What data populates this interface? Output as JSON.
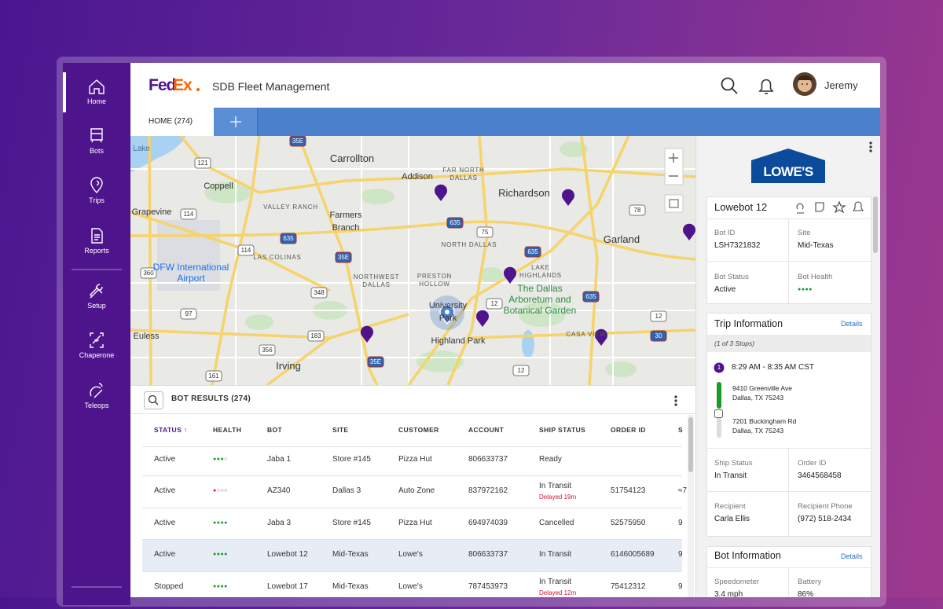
{
  "nav": [
    "Home",
    "Bots",
    "Trips",
    "Reports",
    "Setup",
    "Chaperone",
    "Teleops"
  ],
  "header": {
    "logo_fed": "Fed",
    "logo_ex": "Ex",
    "title": "SDB Fleet Management",
    "user": "Jeremy"
  },
  "tabs": [
    "HOME (274)"
  ],
  "map": {
    "labels": [
      "Lake",
      "Carrollton",
      "Addison",
      "FAR NORTH DALLAS",
      "Coppell",
      "Richardson",
      "Grapevine",
      "VALLEY RANCH",
      "Farmers Branch",
      "Garland",
      "NORTH DALLAS",
      "DFW International Airport",
      "LAS COLINAS",
      "NORTHWEST DALLAS",
      "PRESTON HOLLOW",
      "LAKE HIGHLANDS",
      "The Dallas Arboretum and Botanical Garden",
      "University Park",
      "Highland Park",
      "CASA VIEW",
      "Euless",
      "Irving"
    ],
    "shields": [
      "35E",
      "121",
      "635",
      "75",
      "114",
      "78",
      "635",
      "114",
      "35E",
      "635",
      "360",
      "348",
      "12",
      "635",
      "97",
      "183",
      "12",
      "356",
      "30",
      "35E",
      "12",
      "161"
    ]
  },
  "results": {
    "title": "BOT RESULTS (274)",
    "columns": [
      "STATUS ↑",
      "HEALTH",
      "BOT",
      "SITE",
      "CUSTOMER",
      "ACCOUNT",
      "SHIP STATUS",
      "ORDER ID",
      "S"
    ],
    "rows": [
      {
        "status": "Active",
        "health": "●●●○",
        "health_color": "#1a9a2a",
        "bot": "Jaba 1",
        "site": "Store #145",
        "customer": "Pizza Hut",
        "account": "806633737",
        "ship_status": "Ready"
      },
      {
        "status": "Active",
        "health": "●○○○",
        "health_color": "#d0173a",
        "bot": "AZ340",
        "site": "Dallas 3",
        "customer": "Auto Zone",
        "account": "837972162",
        "ship_status": "In Transit",
        "delay": "Delayed 19m",
        "order_id": "51754123",
        "s": "≈7"
      },
      {
        "status": "Active",
        "health": "●●●●",
        "health_color": "#1a9a2a",
        "bot": "Jaba 3",
        "site": "Store #145",
        "customer": "Pizza Hut",
        "account": "694974039",
        "ship_status": "Cancelled",
        "order_id": "52575950",
        "s": "9"
      },
      {
        "status": "Active",
        "health": "●●●●",
        "health_color": "#1a9a2a",
        "bot": "Lowebot 12",
        "site": "Mid-Texas",
        "customer": "Lowe's",
        "account": "806633737",
        "ship_status": "In Transit",
        "order_id": "6146005689",
        "s": "9"
      },
      {
        "status": "Stopped",
        "health": "●●●●",
        "health_color": "#1a9a2a",
        "bot": "Lowebot 17",
        "site": "Mid-Texas",
        "customer": "Lowe's",
        "account": "787453973",
        "ship_status": "In Transit",
        "delay": "Delayed 12m",
        "order_id": "75412312",
        "s": "9"
      }
    ]
  },
  "detail": {
    "brand": "LOWE'S",
    "bot_name": "Lowebot 12",
    "fields": [
      {
        "label": "Bot ID",
        "value": "LSH7321832"
      },
      {
        "label": "Site",
        "value": "Mid-Texas"
      },
      {
        "label": "Bot Status",
        "value": "Active"
      },
      {
        "label": "Bot Health",
        "value": "●●●●"
      }
    ],
    "trip": {
      "title": "Trip Information",
      "link": "Details",
      "stops": "(1 of 3 Stops)",
      "step": "1",
      "time": "8:29 AM - 8:35 AM CST",
      "from": [
        "9410 Greenville Ave",
        "Dallas, TX 75243"
      ],
      "to": [
        "7201 Buckingham Rd",
        "Dallas, TX 75243"
      ],
      "fields": [
        {
          "label": "Ship Status",
          "value": "In Transit"
        },
        {
          "label": "Order ID",
          "value": "3464568458"
        },
        {
          "label": "Recipient",
          "value": "Carla Ellis"
        },
        {
          "label": "Recipient Phone",
          "value": "(972) 518-2434"
        }
      ]
    },
    "bot_info": {
      "title": "Bot Information",
      "link": "Details",
      "fields": [
        {
          "label": "Speedometer",
          "value": "3.4 mph"
        },
        {
          "label": "Battery",
          "value": "86%"
        }
      ]
    }
  }
}
